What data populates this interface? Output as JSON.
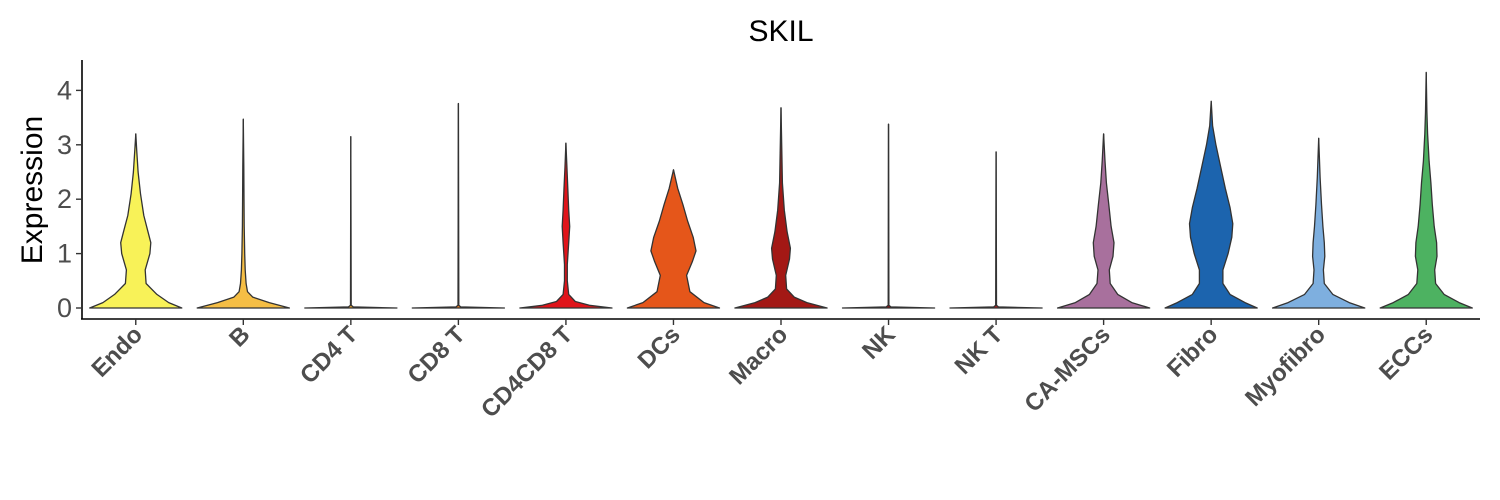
{
  "chart_data": {
    "type": "violin",
    "title": "SKIL",
    "xlabel": "",
    "ylabel": "Expression",
    "ylim": [
      -0.2,
      4.4
    ],
    "yticks": [
      0,
      1,
      2,
      3,
      4
    ],
    "grid": false,
    "legend": "none",
    "categories": [
      "Endo",
      "B",
      "CD4 T",
      "CD8 T",
      "CD4CD8 T",
      "DCs",
      "Macro",
      "NK",
      "NK T",
      "CA-MSCs",
      "Fibro",
      "Myofibro",
      "ECCs"
    ],
    "series": [
      {
        "category": "Endo",
        "color": "#F8F258",
        "max": 3.2,
        "density": [
          [
            0,
            0.98
          ],
          [
            0.1,
            0.7
          ],
          [
            0.25,
            0.45
          ],
          [
            0.45,
            0.22
          ],
          [
            0.7,
            0.2
          ],
          [
            1.0,
            0.3
          ],
          [
            1.2,
            0.32
          ],
          [
            1.4,
            0.26
          ],
          [
            1.7,
            0.17
          ],
          [
            2.1,
            0.1
          ],
          [
            2.5,
            0.05
          ],
          [
            2.9,
            0.02
          ],
          [
            3.2,
            0
          ]
        ]
      },
      {
        "category": "B",
        "color": "#F5BE45",
        "max": 3.47,
        "density": [
          [
            0,
            0.98
          ],
          [
            0.1,
            0.55
          ],
          [
            0.2,
            0.2
          ],
          [
            0.3,
            0.09
          ],
          [
            0.45,
            0.06
          ],
          [
            0.7,
            0.04
          ],
          [
            1.0,
            0.03
          ],
          [
            1.5,
            0.02
          ],
          [
            2.0,
            0.015
          ],
          [
            2.6,
            0.01
          ],
          [
            3.47,
            0
          ]
        ]
      },
      {
        "category": "CD4 T",
        "color": "#E69F2A",
        "max": 3.15,
        "density": [
          [
            0,
            0.98
          ],
          [
            0.02,
            0.05
          ],
          [
            0.05,
            0.008
          ],
          [
            3.15,
            0
          ]
        ]
      },
      {
        "category": "CD8 T",
        "color": "#E87A1F",
        "max": 3.76,
        "density": [
          [
            0,
            0.98
          ],
          [
            0.02,
            0.05
          ],
          [
            0.05,
            0.008
          ],
          [
            3.76,
            0
          ]
        ]
      },
      {
        "category": "CD4CD8 T",
        "color": "#E0141A",
        "max": 3.03,
        "density": [
          [
            0,
            0.98
          ],
          [
            0.05,
            0.5
          ],
          [
            0.12,
            0.2
          ],
          [
            0.25,
            0.06
          ],
          [
            0.5,
            0.03
          ],
          [
            0.8,
            0.03
          ],
          [
            1.2,
            0.06
          ],
          [
            1.5,
            0.08
          ],
          [
            1.8,
            0.06
          ],
          [
            2.2,
            0.04
          ],
          [
            2.6,
            0.02
          ],
          [
            3.03,
            0
          ]
        ]
      },
      {
        "category": "DCs",
        "color": "#E5561A",
        "max": 2.54,
        "density": [
          [
            0,
            0.98
          ],
          [
            0.1,
            0.65
          ],
          [
            0.3,
            0.35
          ],
          [
            0.6,
            0.28
          ],
          [
            0.85,
            0.4
          ],
          [
            1.05,
            0.48
          ],
          [
            1.3,
            0.42
          ],
          [
            1.6,
            0.3
          ],
          [
            1.9,
            0.2
          ],
          [
            2.2,
            0.09
          ],
          [
            2.54,
            0
          ]
        ]
      },
      {
        "category": "Macro",
        "color": "#A31815",
        "max": 3.68,
        "density": [
          [
            0,
            0.98
          ],
          [
            0.1,
            0.55
          ],
          [
            0.2,
            0.28
          ],
          [
            0.35,
            0.12
          ],
          [
            0.6,
            0.1
          ],
          [
            0.9,
            0.18
          ],
          [
            1.1,
            0.2
          ],
          [
            1.4,
            0.13
          ],
          [
            1.8,
            0.07
          ],
          [
            2.3,
            0.03
          ],
          [
            2.8,
            0.02
          ],
          [
            3.68,
            0
          ]
        ]
      },
      {
        "category": "NK",
        "color": "#8C1514",
        "max": 3.38,
        "density": [
          [
            0,
            0.98
          ],
          [
            0.02,
            0.05
          ],
          [
            0.05,
            0.008
          ],
          [
            3.38,
            0
          ]
        ]
      },
      {
        "category": "NK T",
        "color": "#B02020",
        "max": 2.87,
        "density": [
          [
            0,
            0.98
          ],
          [
            0.02,
            0.05
          ],
          [
            0.05,
            0.008
          ],
          [
            1.5,
            0.004
          ],
          [
            2.87,
            0
          ]
        ]
      },
      {
        "category": "CA-MSCs",
        "color": "#A8709D",
        "max": 3.2,
        "density": [
          [
            0,
            0.98
          ],
          [
            0.1,
            0.6
          ],
          [
            0.25,
            0.3
          ],
          [
            0.45,
            0.14
          ],
          [
            0.7,
            0.12
          ],
          [
            0.95,
            0.2
          ],
          [
            1.2,
            0.22
          ],
          [
            1.5,
            0.16
          ],
          [
            1.9,
            0.11
          ],
          [
            2.3,
            0.06
          ],
          [
            2.7,
            0.03
          ],
          [
            3.2,
            0
          ]
        ]
      },
      {
        "category": "Fibro",
        "color": "#1C64AE",
        "max": 3.8,
        "density": [
          [
            0,
            0.98
          ],
          [
            0.1,
            0.72
          ],
          [
            0.25,
            0.4
          ],
          [
            0.45,
            0.25
          ],
          [
            0.7,
            0.25
          ],
          [
            1.0,
            0.36
          ],
          [
            1.3,
            0.44
          ],
          [
            1.55,
            0.46
          ],
          [
            1.85,
            0.4
          ],
          [
            2.2,
            0.3
          ],
          [
            2.6,
            0.2
          ],
          [
            3.0,
            0.1
          ],
          [
            3.35,
            0.03
          ],
          [
            3.8,
            0
          ]
        ]
      },
      {
        "category": "Myofibro",
        "color": "#7EAFDF",
        "max": 3.12,
        "density": [
          [
            0,
            0.98
          ],
          [
            0.1,
            0.65
          ],
          [
            0.25,
            0.3
          ],
          [
            0.45,
            0.12
          ],
          [
            0.7,
            0.1
          ],
          [
            0.95,
            0.13
          ],
          [
            1.2,
            0.12
          ],
          [
            1.5,
            0.09
          ],
          [
            1.9,
            0.06
          ],
          [
            2.4,
            0.03
          ],
          [
            3.12,
            0
          ]
        ]
      },
      {
        "category": "ECCs",
        "color": "#4DB261",
        "max": 4.33,
        "density": [
          [
            0,
            0.98
          ],
          [
            0.1,
            0.7
          ],
          [
            0.25,
            0.38
          ],
          [
            0.45,
            0.2
          ],
          [
            0.7,
            0.18
          ],
          [
            0.95,
            0.23
          ],
          [
            1.2,
            0.22
          ],
          [
            1.5,
            0.17
          ],
          [
            1.9,
            0.13
          ],
          [
            2.3,
            0.1
          ],
          [
            2.7,
            0.06
          ],
          [
            3.2,
            0.03
          ],
          [
            3.6,
            0.015
          ],
          [
            4.33,
            0
          ]
        ]
      }
    ]
  }
}
